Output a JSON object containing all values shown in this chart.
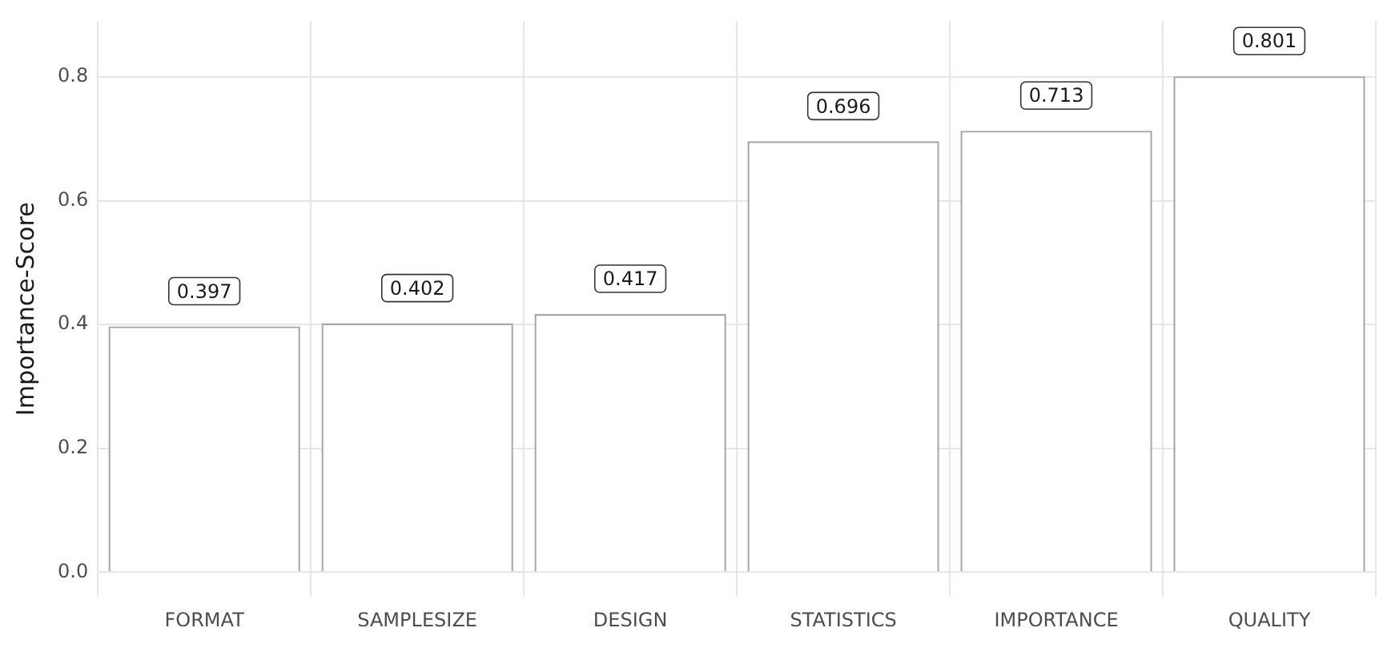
{
  "chart_data": {
    "type": "bar",
    "ylabel": "Importance-Score",
    "categories": [
      "FORMAT",
      "SAMPLESIZE",
      "DESIGN",
      "STATISTICS",
      "IMPORTANCE",
      "QUALITY"
    ],
    "values": [
      0.397,
      0.402,
      0.417,
      0.696,
      0.713,
      0.801
    ],
    "color": "#ffffff",
    "ylim": [
      -0.04,
      0.89
    ],
    "yticks": [
      {
        "value": 0,
        "label": "0.0"
      },
      0.2,
      0.4,
      0.6,
      0.8
    ],
    "grid": true,
    "legend": false,
    "data_labels": true
  }
}
